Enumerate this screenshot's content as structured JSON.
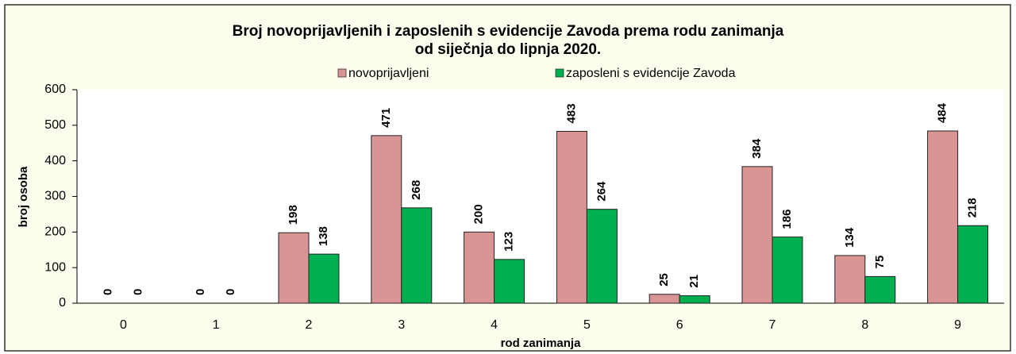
{
  "chart_data": {
    "type": "bar",
    "title": "Broj novoprijavljenih i zaposlenih s evidencije Zavoda prema rodu zanimanja",
    "subtitle": "od siječnja do lipnja 2020.",
    "x_label": "rod zanimanja",
    "y_label": "broj osoba",
    "categories": [
      "0",
      "1",
      "2",
      "3",
      "4",
      "5",
      "6",
      "7",
      "8",
      "9"
    ],
    "series": [
      {
        "name": "novoprijavljeni",
        "color": "#d99594",
        "values": [
          0,
          0,
          198,
          471,
          200,
          483,
          25,
          384,
          134,
          484
        ]
      },
      {
        "name": "zaposleni s evidencije Zavoda",
        "color": "#00b050",
        "values": [
          0,
          0,
          138,
          268,
          123,
          264,
          21,
          186,
          75,
          218
        ]
      }
    ],
    "ylim": [
      0,
      600
    ],
    "yticks": [
      0,
      100,
      200,
      300,
      400,
      500,
      600
    ],
    "grid": false
  }
}
